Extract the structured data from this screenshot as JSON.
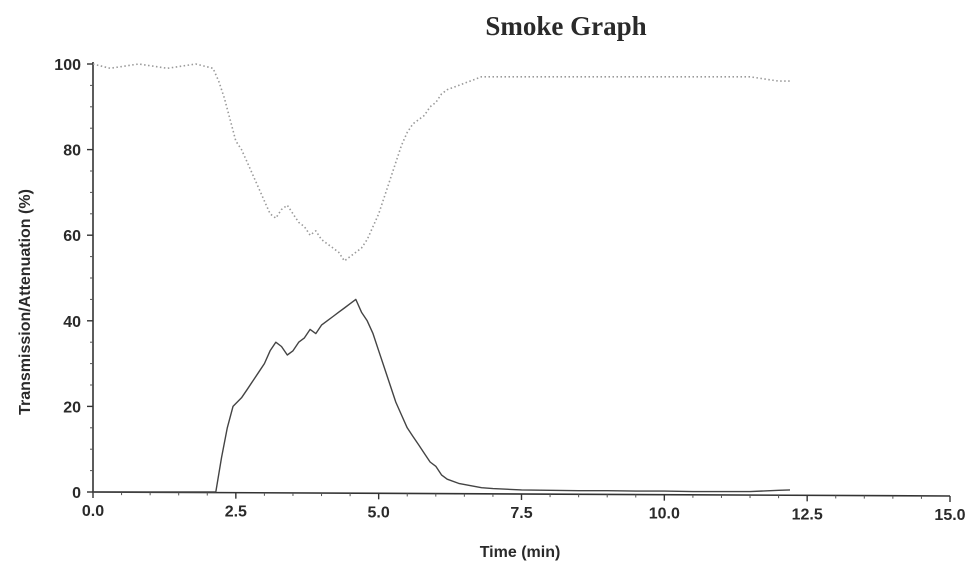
{
  "chart_data": {
    "type": "line",
    "title": "Smoke Graph",
    "xlabel": "Time (min)",
    "ylabel": "Transmission/Attenuation (%)",
    "xlim": [
      0,
      15
    ],
    "ylim": [
      0,
      100
    ],
    "x_ticks": [
      "0.0",
      "2.5",
      "5.0",
      "7.5",
      "10.0",
      "12.5",
      "15.0"
    ],
    "y_ticks": [
      "0",
      "20",
      "40",
      "60",
      "80",
      "100"
    ],
    "grid": false,
    "legend": "none",
    "series": [
      {
        "style": "dotted",
        "color": "#9a9a9a",
        "x": [
          0.0,
          0.3,
          0.8,
          1.3,
          1.8,
          2.1,
          2.2,
          2.3,
          2.4,
          2.5,
          2.6,
          2.7,
          2.8,
          2.9,
          3.0,
          3.1,
          3.2,
          3.3,
          3.4,
          3.5,
          3.6,
          3.7,
          3.8,
          3.9,
          4.0,
          4.1,
          4.2,
          4.3,
          4.4,
          4.5,
          4.6,
          4.7,
          4.8,
          4.9,
          5.0,
          5.1,
          5.2,
          5.3,
          5.4,
          5.5,
          5.6,
          5.7,
          5.8,
          5.9,
          6.0,
          6.1,
          6.2,
          6.4,
          6.6,
          6.8,
          7.0,
          7.5,
          8.0,
          8.5,
          9.0,
          9.5,
          10.0,
          10.5,
          11.0,
          11.5,
          12.0,
          12.2
        ],
        "y": [
          100,
          99,
          100,
          99,
          100,
          99,
          96,
          92,
          87,
          82,
          80,
          77,
          74,
          71,
          68,
          65,
          64,
          66,
          67,
          65,
          63,
          62,
          60,
          61,
          59,
          58,
          57,
          56,
          54,
          55,
          56,
          57,
          59,
          62,
          65,
          69,
          73,
          77,
          81,
          84,
          86,
          87,
          88,
          90,
          91,
          93,
          94,
          95,
          96,
          97,
          97,
          97,
          97,
          97,
          97,
          97,
          97,
          97,
          97,
          97,
          96,
          96
        ]
      },
      {
        "style": "solid",
        "color": "#444444",
        "x": [
          0.0,
          1.0,
          2.0,
          2.15,
          2.25,
          2.35,
          2.45,
          2.6,
          2.7,
          2.8,
          2.9,
          3.0,
          3.1,
          3.2,
          3.3,
          3.4,
          3.5,
          3.6,
          3.7,
          3.8,
          3.9,
          4.0,
          4.1,
          4.2,
          4.3,
          4.4,
          4.5,
          4.6,
          4.7,
          4.8,
          4.9,
          5.0,
          5.1,
          5.2,
          5.3,
          5.4,
          5.5,
          5.6,
          5.7,
          5.8,
          5.9,
          6.0,
          6.1,
          6.2,
          6.4,
          6.6,
          6.8,
          7.0,
          7.5,
          8.0,
          8.5,
          9.0,
          9.5,
          10.0,
          10.5,
          11.0,
          11.5,
          12.0,
          12.2
        ],
        "y": [
          0,
          0,
          0,
          0,
          8,
          15,
          20,
          22,
          24,
          26,
          28,
          30,
          33,
          35,
          34,
          32,
          33,
          35,
          36,
          38,
          37,
          39,
          40,
          41,
          42,
          43,
          44,
          45,
          42,
          40,
          37,
          33,
          29,
          25,
          21,
          18,
          15,
          13,
          11,
          9,
          7,
          6,
          4,
          3,
          2,
          1.5,
          1,
          0.8,
          0.5,
          0.4,
          0.3,
          0.3,
          0.2,
          0.2,
          0.1,
          0.1,
          0.1,
          0.4,
          0.5
        ]
      }
    ]
  }
}
